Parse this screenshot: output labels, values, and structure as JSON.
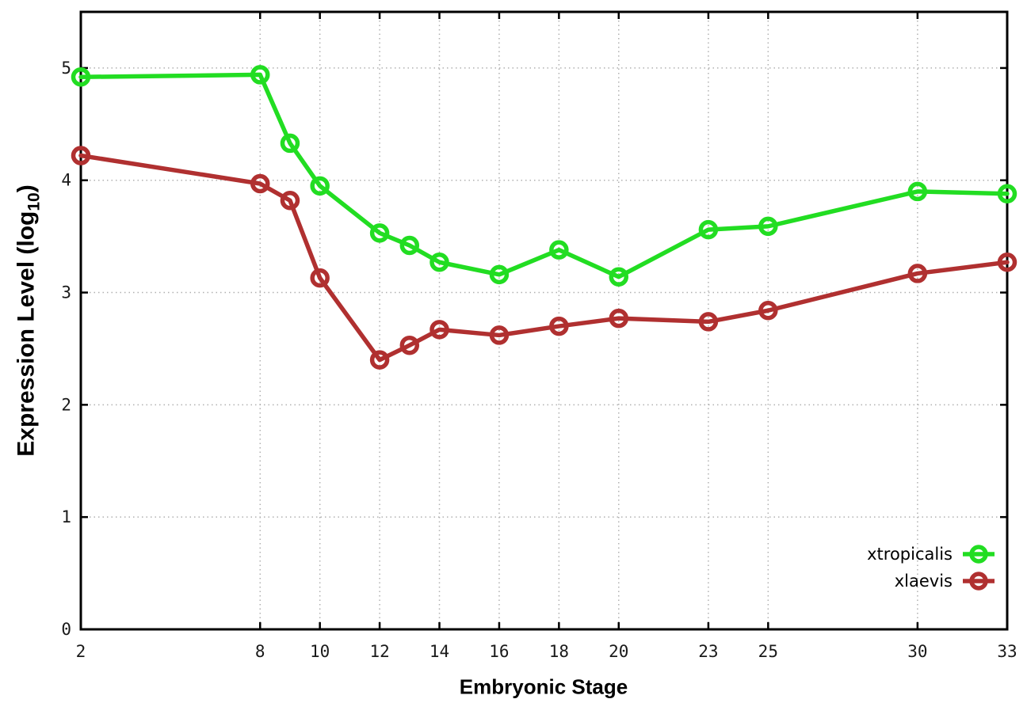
{
  "chart": {
    "background_color": "#ffffff",
    "border_color": "#000000",
    "grid_color": "#b0b0b0",
    "tick_label_color": "#1a1a1a",
    "y_axis": {
      "label_main": "Expression Level (log",
      "label_sub": "10",
      "label_close": ")"
    }
  },
  "chart_data": {
    "type": "line",
    "title": "",
    "xlabel": "Embryonic Stage",
    "ylabel": "Expression Level (log10)",
    "x": [
      2,
      8,
      9,
      10,
      12,
      13,
      14,
      16,
      18,
      20,
      23,
      25,
      30,
      33
    ],
    "series": [
      {
        "name": "xtropicalis",
        "color": "#22dd22",
        "values": [
          4.92,
          4.94,
          4.33,
          3.95,
          3.53,
          3.42,
          3.27,
          3.16,
          3.38,
          3.14,
          3.56,
          3.59,
          3.9,
          3.88
        ]
      },
      {
        "name": "xlaevis",
        "color": "#b03030",
        "values": [
          4.22,
          3.97,
          3.82,
          3.13,
          2.4,
          2.53,
          2.67,
          2.62,
          2.7,
          2.77,
          2.74,
          2.84,
          3.17,
          3.27
        ]
      }
    ],
    "xlim": [
      2,
      33
    ],
    "ylim": [
      0,
      5.5
    ],
    "x_ticks": [
      2,
      8,
      10,
      12,
      14,
      16,
      18,
      20,
      23,
      25,
      30,
      33
    ],
    "y_ticks": [
      0,
      1,
      2,
      3,
      4,
      5
    ],
    "grid": true,
    "legend_position": "bottom-right",
    "marker": "open-circle"
  }
}
